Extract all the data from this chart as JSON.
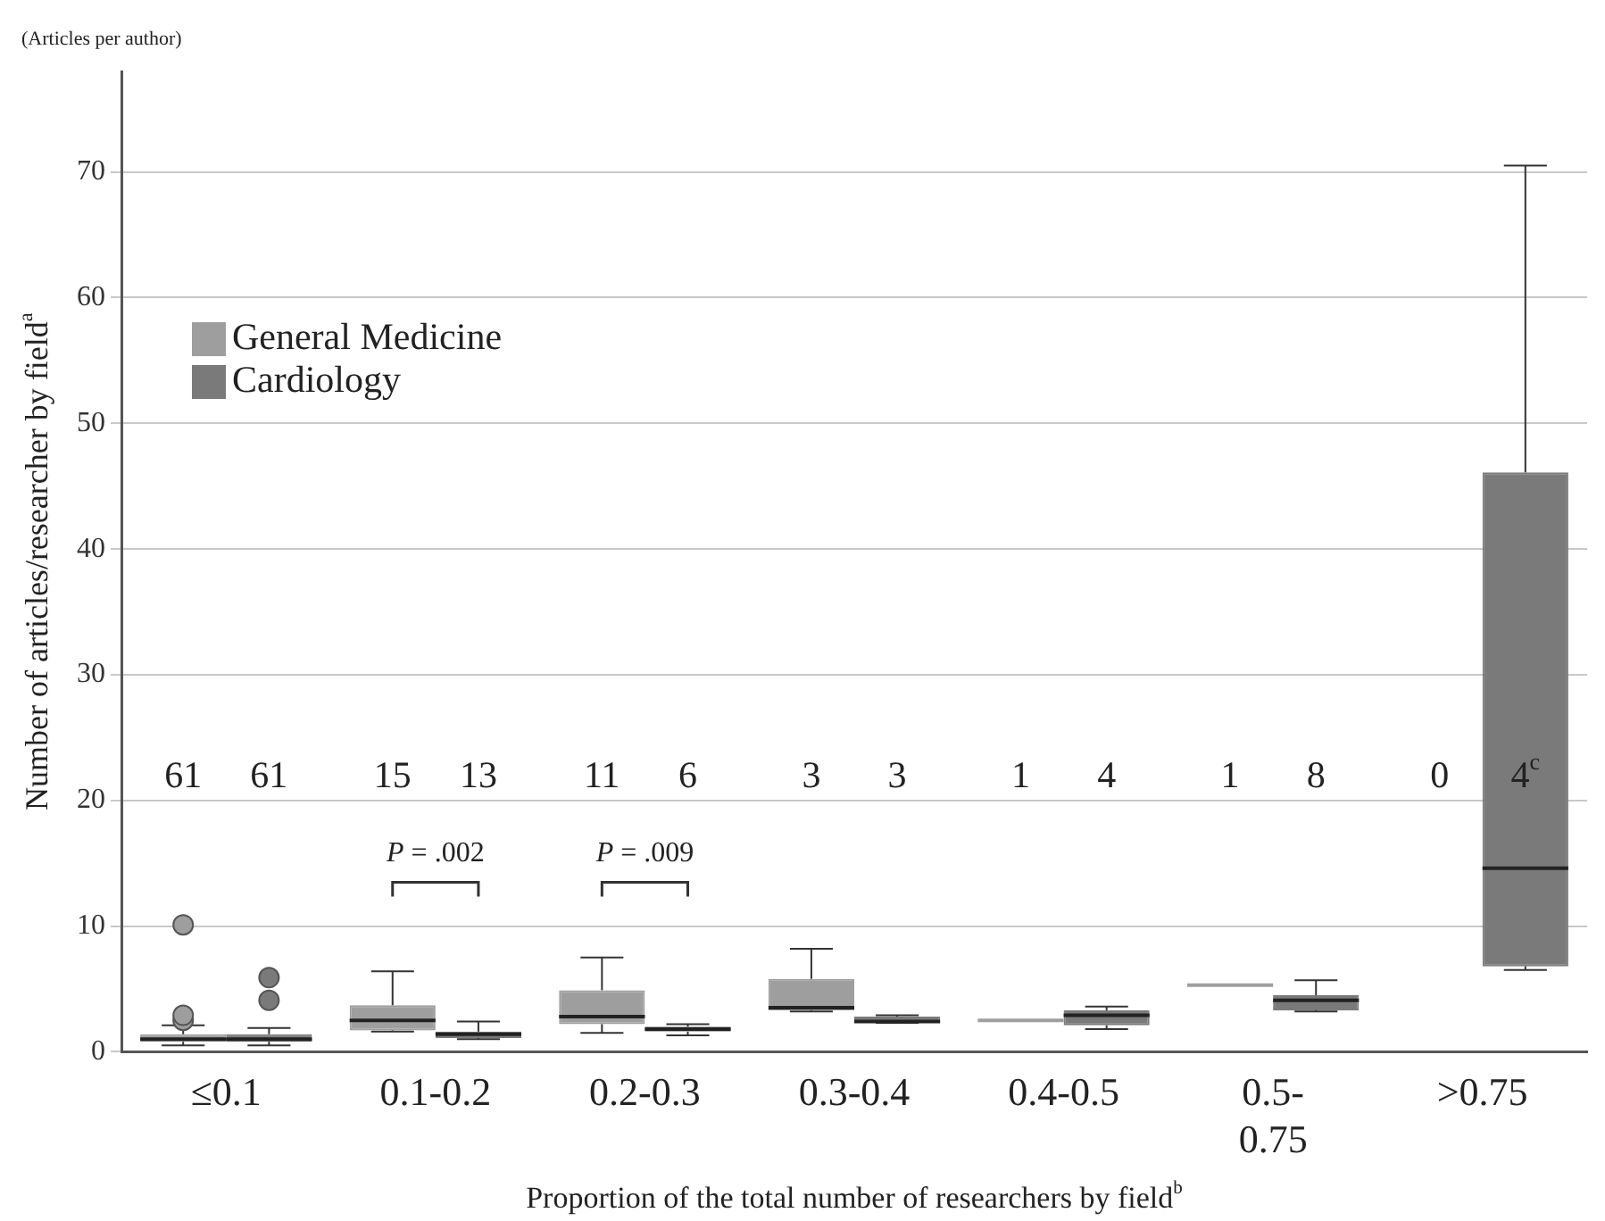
{
  "chart_data": {
    "type": "box",
    "title": "(Articles per author)",
    "xlabel": "Proportion of the total number of researchers by field$^{b}$",
    "ylabel": "Number of articles/researcher by field$^{a}$",
    "categories": [
      "≤0.1",
      "0.1-0.2",
      "0.2-0.3",
      "0.3-0.4",
      "0.4-0.5",
      "0.5-0.75",
      ">0.75"
    ],
    "series": [
      {
        "name": "General Medicine",
        "color": "#9e9e9e",
        "boxes": [
          {
            "low": 0.5,
            "q1": 0.8,
            "median": 1.0,
            "q3": 1.4,
            "high": 2.1,
            "outliers": [
              2.5,
              2.9,
              10.1
            ]
          },
          {
            "low": 1.6,
            "q1": 1.7,
            "median": 2.5,
            "q3": 3.7,
            "high": 6.4
          },
          {
            "low": 1.5,
            "q1": 2.2,
            "median": 2.8,
            "q3": 4.9,
            "high": 7.5
          },
          {
            "low": 3.2,
            "q1": 3.3,
            "median": 3.5,
            "q3": 5.8,
            "high": 8.2
          },
          {
            "low": 2.5,
            "q1": 2.5,
            "median": 2.5,
            "q3": 2.5,
            "high": 2.5
          },
          {
            "low": 5.3,
            "q1": 5.3,
            "median": 5.3,
            "q3": 5.3,
            "high": 5.3
          },
          null
        ]
      },
      {
        "name": "Cardiology",
        "color": "#7a7a7a",
        "boxes": [
          {
            "low": 0.5,
            "q1": 0.8,
            "median": 1.0,
            "q3": 1.4,
            "high": 1.9,
            "outliers": [
              4.1,
              5.9
            ]
          },
          {
            "low": 1.0,
            "q1": 1.1,
            "median": 1.4,
            "q3": 1.6,
            "high": 2.4
          },
          {
            "low": 1.3,
            "q1": 1.6,
            "median": 1.8,
            "q3": 2.0,
            "high": 2.2
          },
          {
            "low": 2.3,
            "q1": 2.3,
            "median": 2.4,
            "q3": 2.8,
            "high": 2.9
          },
          {
            "low": 1.8,
            "q1": 2.1,
            "median": 2.9,
            "q3": 3.3,
            "high": 3.6
          },
          {
            "low": 3.2,
            "q1": 3.3,
            "median": 4.1,
            "q3": 4.5,
            "high": 5.7
          },
          {
            "low": 6.5,
            "q1": 6.8,
            "median": 14.6,
            "q3": 46.1,
            "high": 70.5
          }
        ]
      }
    ],
    "ylim": [
      0,
      78
    ],
    "yticks": [
      0,
      10,
      20,
      30,
      40,
      50,
      60,
      70
    ],
    "grid": "y",
    "legend": "top left",
    "annotations": [
      "61",
      "61",
      "15",
      "13",
      "11",
      "6",
      "3",
      "3",
      "1",
      "4",
      "1",
      "8",
      "0",
      "4$^{c}$",
      "P = .002",
      "P = .009"
    ]
  }
}
